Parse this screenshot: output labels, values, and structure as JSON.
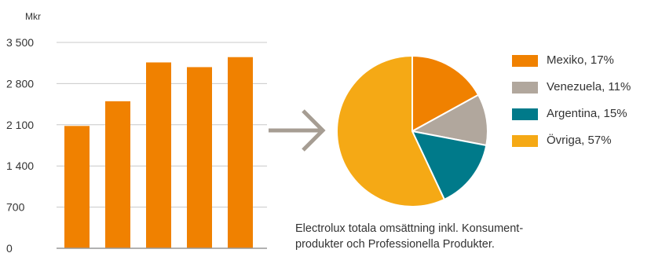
{
  "chart_data": [
    {
      "type": "bar",
      "ylabel": "Mkr",
      "ylim": [
        0,
        3500
      ],
      "yticks": [
        0,
        700,
        1400,
        2100,
        2800,
        3500
      ],
      "ytick_labels": [
        "0",
        "700",
        "1 400",
        "2 100",
        "2 800",
        "3 500"
      ],
      "categories": [
        "",
        "",
        "",
        "",
        ""
      ],
      "values": [
        2080,
        2500,
        3160,
        3080,
        3250
      ],
      "bar_color": "#f08100",
      "grid": true
    },
    {
      "type": "pie",
      "legend_position": "right",
      "slices": [
        {
          "label": "Mexiko, 17%",
          "value": 17,
          "color": "#f08100"
        },
        {
          "label": "Venezuela, 11%",
          "value": 11,
          "color": "#b1a79d"
        },
        {
          "label": "Argentina, 15%",
          "value": 15,
          "color": "#007a8a"
        },
        {
          "label": "Övriga, 57%",
          "value": 57,
          "color": "#f5a915"
        }
      ]
    }
  ],
  "caption": {
    "line1": "Electrolux totala omsättning inkl. Konsument-",
    "line2": "produkter och Professionella Produkter."
  },
  "arrow": {
    "icon": "arrow-right-icon",
    "color": "#a69d93"
  }
}
